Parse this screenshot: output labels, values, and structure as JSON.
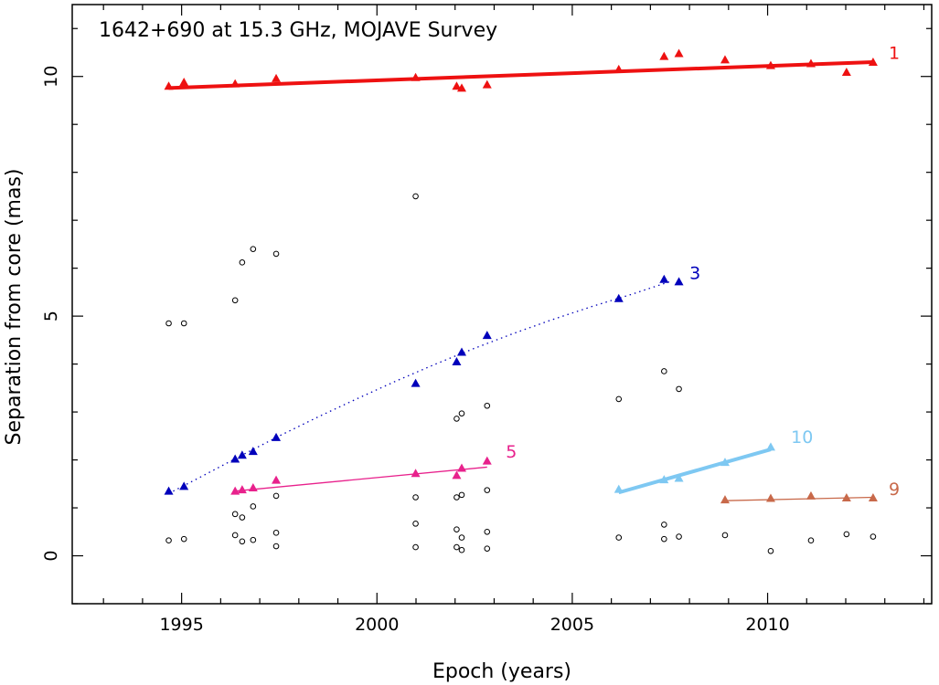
{
  "chart_data": {
    "type": "scatter",
    "title": "1642+690 at 15.3 GHz, MOJAVE Survey",
    "xlabel": "Epoch (years)",
    "ylabel": "Separation from core (mas)",
    "xlim": [
      1992.2,
      2014.2
    ],
    "ylim": [
      -1.0,
      11.5
    ],
    "x_ticks": [
      {
        "value": 1995,
        "label": "1995"
      },
      {
        "value": 2000,
        "label": "2000"
      },
      {
        "value": 2005,
        "label": "2005"
      },
      {
        "value": 2010,
        "label": "2010"
      }
    ],
    "y_ticks": [
      {
        "value": 0,
        "label": "0"
      },
      {
        "value": 5,
        "label": "5"
      },
      {
        "value": 10,
        "label": "10"
      }
    ],
    "x_minor_step": 1,
    "y_minor_step": 1,
    "grid": false,
    "series": [
      {
        "name": "1",
        "color": "#ee1111",
        "fit_style": "thick",
        "points": [
          [
            1994.67,
            9.8
          ],
          [
            1995.06,
            9.88
          ],
          [
            1996.37,
            9.85
          ],
          [
            1997.42,
            9.96
          ],
          [
            2000.99,
            9.98
          ],
          [
            2002.04,
            9.8
          ],
          [
            2002.17,
            9.76
          ],
          [
            2002.82,
            9.83
          ],
          [
            2006.19,
            10.15
          ],
          [
            2007.35,
            10.42
          ],
          [
            2007.73,
            10.48
          ],
          [
            2008.91,
            10.35
          ],
          [
            2010.08,
            10.23
          ],
          [
            2011.11,
            10.27
          ],
          [
            2012.02,
            10.09
          ],
          [
            2012.7,
            10.3
          ]
        ],
        "fit": [
          [
            1994.67,
            9.76
          ],
          [
            2012.7,
            10.3
          ]
        ],
        "label_pos": [
          2013.1,
          10.37
        ]
      },
      {
        "name": "3",
        "color": "#0000bb",
        "fit_style": "dotted",
        "points": [
          [
            1994.67,
            1.35
          ],
          [
            1995.06,
            1.45
          ],
          [
            1996.37,
            2.02
          ],
          [
            1996.55,
            2.1
          ],
          [
            1996.83,
            2.18
          ],
          [
            1997.42,
            2.47
          ],
          [
            2000.99,
            3.6
          ],
          [
            2002.04,
            4.05
          ],
          [
            2002.17,
            4.25
          ],
          [
            2002.82,
            4.6
          ],
          [
            2006.19,
            5.37
          ],
          [
            2007.35,
            5.77
          ],
          [
            2007.73,
            5.72
          ]
        ],
        "fit": [
          [
            1994.67,
            1.3
          ],
          [
            1995.5,
            1.65
          ],
          [
            1996.5,
            2.08
          ],
          [
            1997.5,
            2.5
          ],
          [
            1998.5,
            2.9
          ],
          [
            1999.5,
            3.28
          ],
          [
            2000.5,
            3.65
          ],
          [
            2001.5,
            4.0
          ],
          [
            2002.5,
            4.33
          ],
          [
            2003.5,
            4.64
          ],
          [
            2004.5,
            4.93
          ],
          [
            2005.5,
            5.2
          ],
          [
            2006.5,
            5.45
          ],
          [
            2007.5,
            5.72
          ]
        ],
        "label_pos": [
          2008.0,
          5.77
        ]
      },
      {
        "name": "5",
        "color": "#e8218c",
        "fit_style": "thin",
        "points": [
          [
            1996.37,
            1.35
          ],
          [
            1996.55,
            1.38
          ],
          [
            1996.83,
            1.42
          ],
          [
            1997.42,
            1.58
          ],
          [
            2000.99,
            1.72
          ],
          [
            2002.04,
            1.68
          ],
          [
            2002.17,
            1.83
          ],
          [
            2002.82,
            1.98
          ]
        ],
        "fit": [
          [
            1996.37,
            1.35
          ],
          [
            2002.82,
            1.85
          ]
        ],
        "label_pos": [
          2003.3,
          2.05
        ]
      },
      {
        "name": "10",
        "color": "#7ec8f2",
        "fit_style": "thick",
        "points": [
          [
            2006.19,
            1.39
          ],
          [
            2007.35,
            1.59
          ],
          [
            2007.73,
            1.62
          ],
          [
            2008.91,
            1.95
          ],
          [
            2010.08,
            2.27
          ]
        ],
        "fit": [
          [
            2006.19,
            1.32
          ],
          [
            2010.08,
            2.22
          ]
        ],
        "label_pos": [
          2010.6,
          2.35
        ]
      },
      {
        "name": "9",
        "color": "#c8694a",
        "fit_style": "thin",
        "points": [
          [
            2008.91,
            1.17
          ],
          [
            2010.08,
            1.2
          ],
          [
            2011.11,
            1.25
          ],
          [
            2012.02,
            1.21
          ],
          [
            2012.7,
            1.21
          ]
        ],
        "fit": [
          [
            2008.91,
            1.15
          ],
          [
            2012.7,
            1.22
          ]
        ],
        "label_pos": [
          2013.1,
          1.27
        ]
      }
    ],
    "open_circles": {
      "name": "other components",
      "color": "#000000",
      "points": [
        [
          1994.67,
          4.85
        ],
        [
          1995.06,
          4.85
        ],
        [
          1994.67,
          0.32
        ],
        [
          1995.06,
          0.35
        ],
        [
          1996.37,
          5.33
        ],
        [
          1996.55,
          6.12
        ],
        [
          1996.83,
          6.4
        ],
        [
          1997.42,
          6.3
        ],
        [
          1996.37,
          0.87
        ],
        [
          1996.55,
          0.8
        ],
        [
          1996.83,
          1.03
        ],
        [
          1997.42,
          1.25
        ],
        [
          1996.37,
          0.43
        ],
        [
          1996.55,
          0.3
        ],
        [
          1996.83,
          0.33
        ],
        [
          1997.42,
          0.48
        ],
        [
          1997.42,
          0.2
        ],
        [
          2000.99,
          7.5
        ],
        [
          2000.99,
          1.22
        ],
        [
          2000.99,
          0.67
        ],
        [
          2000.99,
          0.18
        ],
        [
          2002.04,
          2.86
        ],
        [
          2002.17,
          2.97
        ],
        [
          2002.04,
          1.22
        ],
        [
          2002.17,
          1.27
        ],
        [
          2002.04,
          0.55
        ],
        [
          2002.17,
          0.38
        ],
        [
          2002.04,
          0.18
        ],
        [
          2002.17,
          0.12
        ],
        [
          2002.82,
          3.13
        ],
        [
          2002.82,
          1.37
        ],
        [
          2002.82,
          0.5
        ],
        [
          2002.82,
          0.15
        ],
        [
          2006.19,
          3.27
        ],
        [
          2006.19,
          0.38
        ],
        [
          2007.35,
          3.85
        ],
        [
          2007.73,
          3.48
        ],
        [
          2007.35,
          0.65
        ],
        [
          2007.35,
          0.35
        ],
        [
          2007.73,
          0.4
        ],
        [
          2008.91,
          0.43
        ],
        [
          2010.08,
          0.1
        ],
        [
          2011.11,
          0.32
        ],
        [
          2012.02,
          0.45
        ],
        [
          2012.7,
          0.4
        ]
      ]
    }
  }
}
